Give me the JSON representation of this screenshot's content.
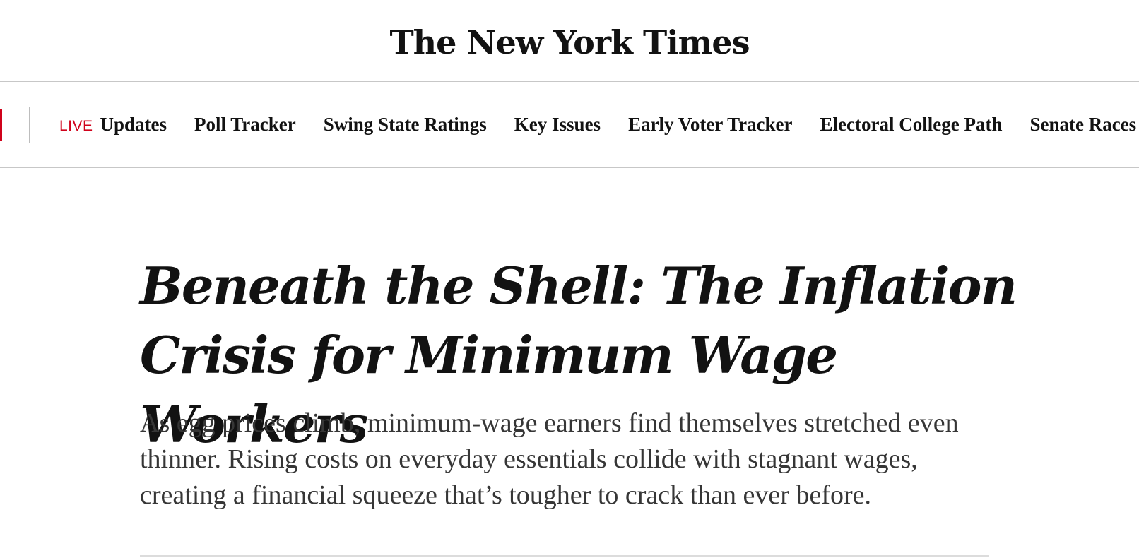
{
  "masthead": {
    "logo_text": "The New York Times"
  },
  "nav": {
    "live_badge": "LIVE",
    "items": [
      {
        "label": "Updates"
      },
      {
        "label": "Poll Tracker"
      },
      {
        "label": "Swing State Ratings"
      },
      {
        "label": "Key Issues"
      },
      {
        "label": "Early Voter Tracker"
      },
      {
        "label": "Electoral College Path"
      },
      {
        "label": "Senate Races"
      }
    ]
  },
  "article": {
    "headline": "Beneath the Shell: The Inflation Crisis for Minimum Wage Workers",
    "summary": "As egg prices climb, minimum-wage earners find themselves stretched even thinner. Rising costs on everyday essentials collide with stagnant wages, creating a financial squeeze that’s tougher to crack than ever before."
  },
  "colors": {
    "live_red": "#d0021b",
    "text": "#121212",
    "summary_text": "#363636",
    "rule": "#c7c7c7"
  }
}
